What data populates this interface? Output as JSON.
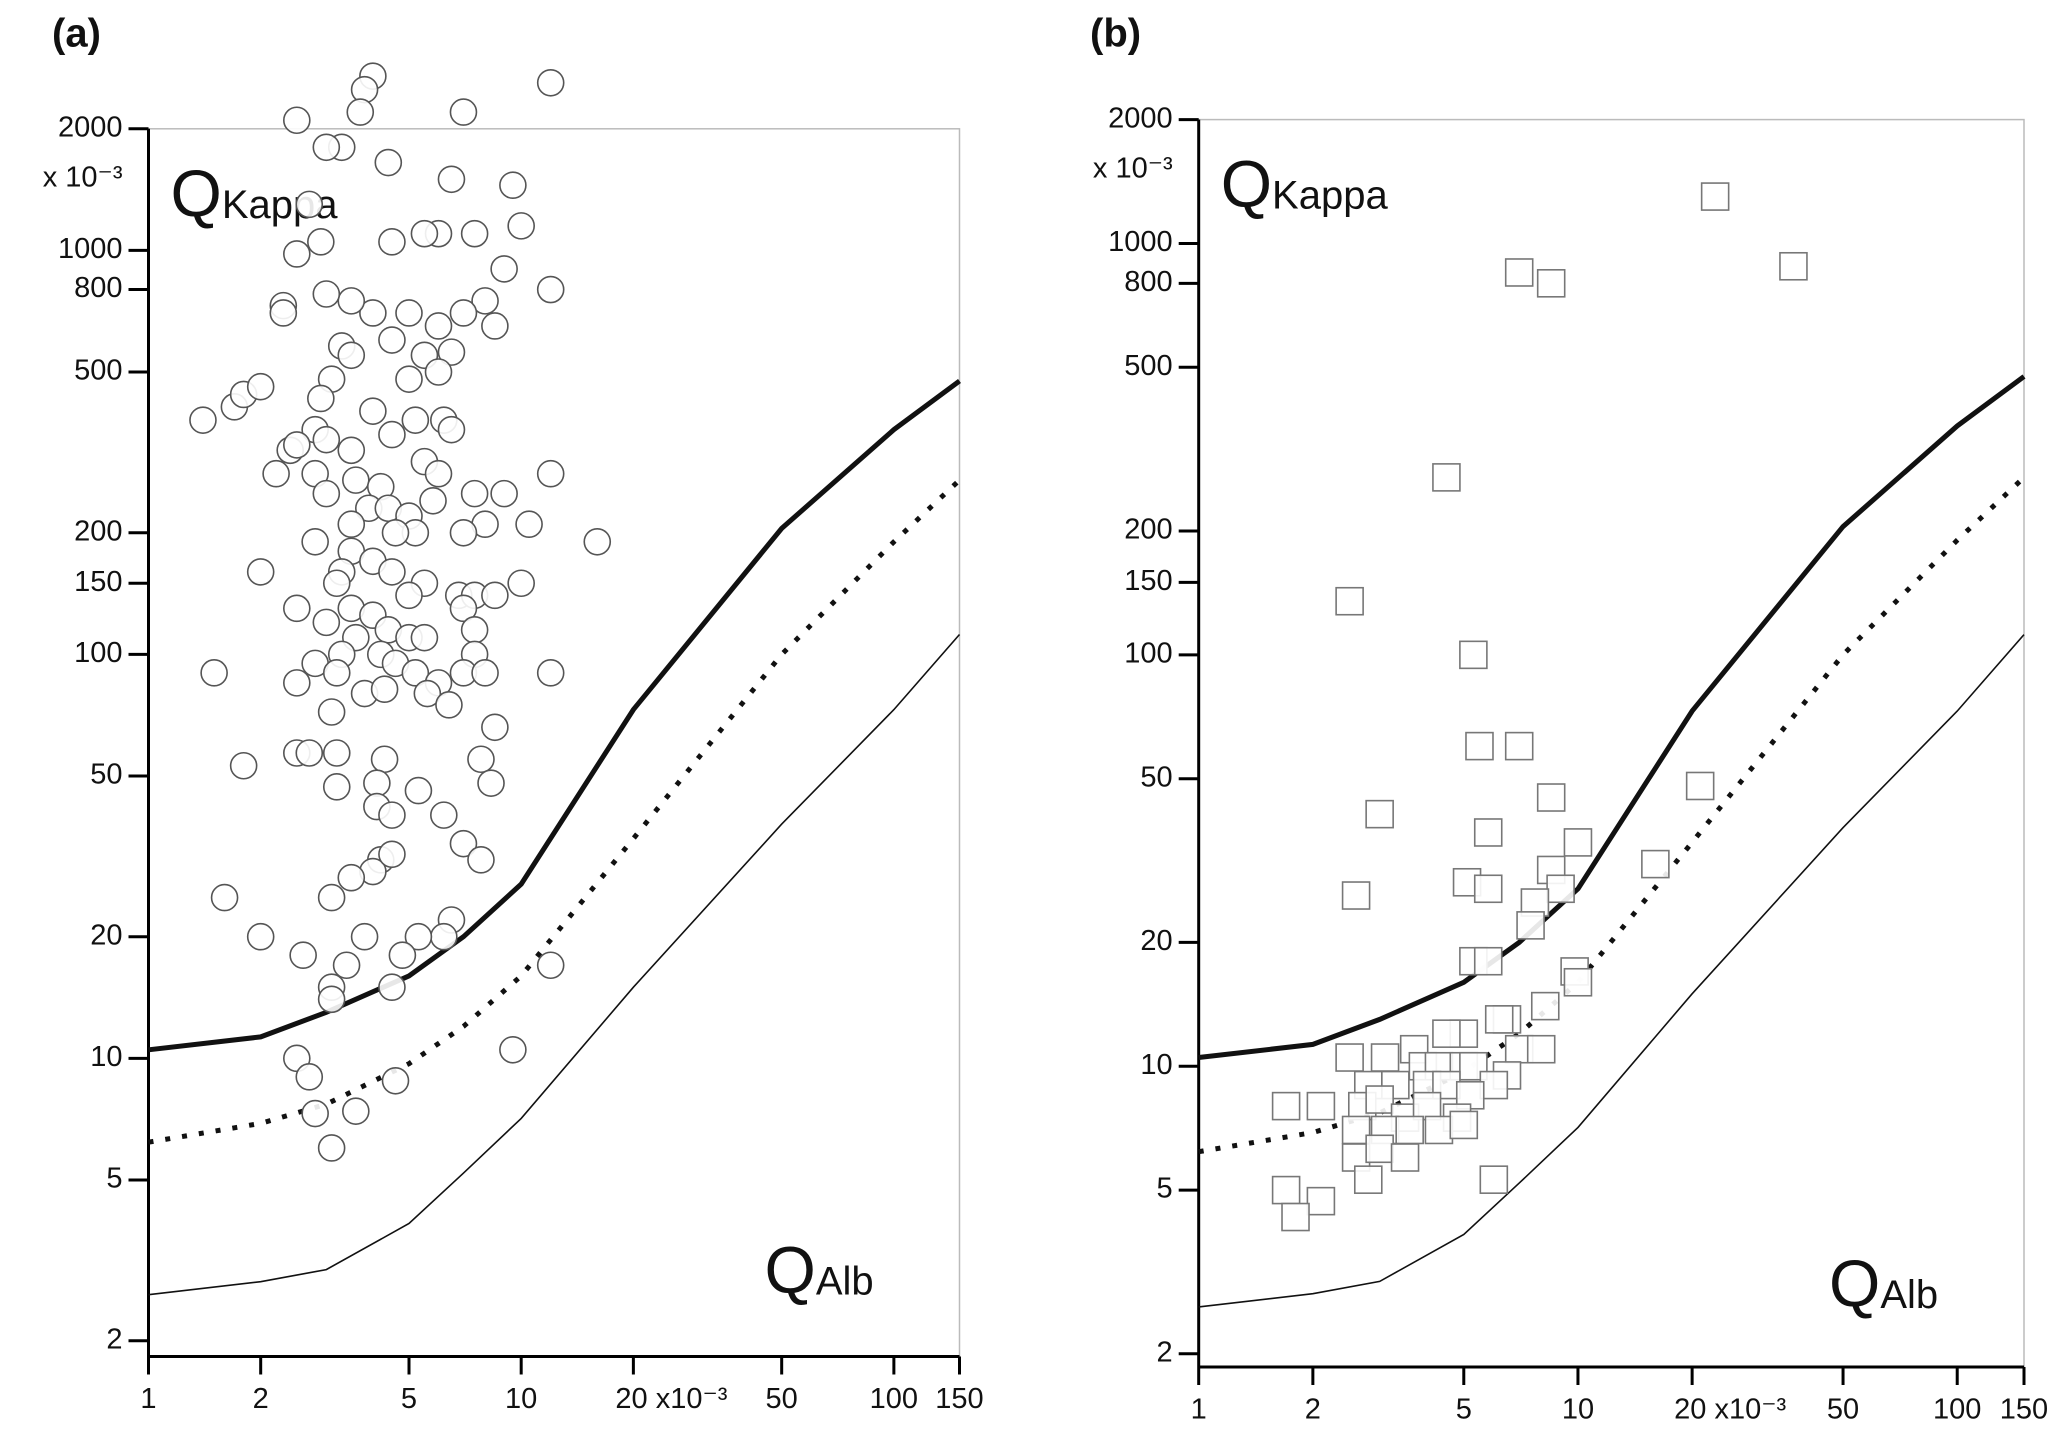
{
  "chart_data": [
    {
      "type": "scatter",
      "panel_label": "(a)",
      "annotation_top": "Q",
      "annotation_top_sub": "Kappa",
      "annotation_bottom": "Q",
      "annotation_bottom_sub": "Alb",
      "y_unit": "x 10⁻³",
      "xscale": "log",
      "yscale": "log",
      "xlim": [
        1,
        150
      ],
      "ylim": [
        2,
        2000
      ],
      "xticks": [
        1,
        2,
        5,
        10,
        {
          "value": 20,
          "label": "20 x10⁻³"
        },
        50,
        100,
        150
      ],
      "yticks": [
        2,
        5,
        10,
        20,
        50,
        100,
        150,
        200,
        500,
        800,
        1000,
        2000
      ],
      "marker": "circle",
      "color": "#555555",
      "points": {
        "x": [
          4,
          3.8,
          3.7,
          2.5,
          7,
          12,
          6.5,
          3.3,
          3,
          4.4,
          9.5,
          10,
          7.5,
          6,
          5.5,
          4.5,
          2.9,
          2.5,
          2.7,
          12,
          9,
          8,
          8.5,
          7,
          6,
          5,
          4,
          3.5,
          3,
          2.3,
          2.3,
          3.3,
          3.5,
          4.5,
          5.5,
          6.5,
          6,
          5,
          3.1,
          2.9,
          1.4,
          1.7,
          1.8,
          2,
          2.8,
          3,
          3.5,
          4,
          4.5,
          5.2,
          6.2,
          6.5,
          2.4,
          2.8,
          2.2,
          2.5,
          3.6,
          4.2,
          5.5,
          6,
          12,
          9,
          7.5,
          3,
          3.9,
          4.4,
          5,
          5.8,
          10.5,
          8,
          7,
          5.2,
          4.6,
          3.5,
          2.8,
          3.5,
          16,
          4,
          3.3,
          3.2,
          4.5,
          5.5,
          5,
          6.8,
          7.5,
          8.5,
          10,
          7,
          3.5,
          2.5,
          2,
          3,
          4,
          4.4,
          5,
          5.5,
          7.5,
          7.5,
          3.6,
          4.2,
          3.3,
          2.8,
          3.2,
          4.6,
          5.2,
          6,
          7,
          8,
          12,
          1.5,
          2.5,
          3.8,
          4.3,
          5.6,
          6.4,
          3.1,
          8.5,
          2.5,
          2.7,
          3.2,
          4.3,
          1.8,
          7.8,
          8.3,
          3.2,
          4.1,
          5.3,
          4.1,
          4.5,
          6.2,
          7,
          7.8,
          4.2,
          4,
          4.5,
          3.5,
          3.1,
          1.6,
          6.5,
          6.2,
          5.3,
          4.8,
          3.8,
          2.6,
          2,
          3.4,
          3.1,
          3.1,
          4.5,
          12,
          2.5,
          2.7,
          4.6,
          9.5,
          2.8,
          3.6,
          3.1
        ],
        "y": [
          2700,
          2500,
          2200,
          2100,
          2200,
          2600,
          1500,
          1800,
          1800,
          1650,
          1450,
          1150,
          1100,
          1100,
          1100,
          1050,
          1050,
          980,
          1300,
          800,
          900,
          750,
          650,
          700,
          650,
          700,
          700,
          750,
          780,
          730,
          700,
          580,
          550,
          600,
          550,
          560,
          500,
          480,
          480,
          430,
          380,
          410,
          440,
          460,
          360,
          340,
          320,
          400,
          350,
          380,
          380,
          360,
          320,
          280,
          280,
          330,
          270,
          260,
          300,
          280,
          280,
          250,
          250,
          250,
          230,
          230,
          220,
          240,
          210,
          210,
          200,
          200,
          200,
          210,
          190,
          180,
          190,
          170,
          160,
          150,
          160,
          150,
          140,
          140,
          140,
          140,
          150,
          130,
          130,
          130,
          160,
          120,
          125,
          115,
          110,
          110,
          115,
          100,
          110,
          100,
          100,
          95,
          90,
          95,
          90,
          85,
          90,
          90,
          90,
          90,
          85,
          80,
          82,
          80,
          75,
          72,
          66,
          57,
          57,
          57,
          55,
          53,
          55,
          48,
          47,
          48,
          46,
          42,
          40,
          40,
          34,
          31,
          31,
          29,
          32,
          28,
          25,
          25,
          22,
          20,
          20,
          18,
          20,
          18,
          20,
          17,
          15,
          14,
          15,
          17,
          10,
          9,
          8.8,
          10.5,
          7.3,
          7.4,
          6
        ]
      },
      "curve_x": [
        1,
        2,
        3,
        5,
        7,
        10,
        20,
        50,
        100,
        150
      ],
      "curves": [
        {
          "line_style": "solid-thick",
          "values": [
            10.5,
            11.3,
            13,
            16,
            20,
            27,
            73,
            205,
            360,
            475
          ]
        },
        {
          "line_style": "dotted",
          "values": [
            6.2,
            6.9,
            7.7,
            9.7,
            12,
            16,
            35,
            100,
            190,
            270
          ]
        },
        {
          "line_style": "solid-thin",
          "values": [
            2.6,
            2.8,
            3.0,
            3.9,
            5.2,
            7.1,
            15,
            38,
            73,
            112
          ]
        }
      ]
    },
    {
      "type": "scatter",
      "panel_label": "(b)",
      "annotation_top": "Q",
      "annotation_top_sub": "Kappa",
      "annotation_bottom": "Q",
      "annotation_bottom_sub": "Alb",
      "y_unit": "x 10⁻³",
      "xscale": "log",
      "yscale": "log",
      "xlim": [
        1,
        150
      ],
      "ylim": [
        2,
        2000
      ],
      "xticks": [
        1,
        2,
        5,
        10,
        {
          "value": 20,
          "label": "20 x10⁻³"
        },
        50,
        100,
        150
      ],
      "yticks": [
        2,
        5,
        10,
        20,
        50,
        100,
        150,
        200,
        500,
        800,
        1000,
        2000
      ],
      "marker": "square",
      "color": "#777777",
      "points": {
        "x": [
          23,
          7,
          8.5,
          37,
          4.5,
          2.5,
          5.3,
          5.5,
          7,
          8.5,
          3,
          21,
          5.8,
          10,
          8.5,
          16,
          2.6,
          5.1,
          5.8,
          9,
          7.7,
          7.5,
          5.3,
          5.8,
          9.8,
          10,
          8.2,
          6.5,
          6.2,
          5,
          4.5,
          3.7,
          2.5,
          3.1,
          3.9,
          4.3,
          5,
          5.3,
          7,
          8,
          6.5,
          6,
          2.8,
          3.3,
          4,
          4.5,
          5.2,
          1.7,
          2.1,
          2.7,
          3,
          3.5,
          4,
          4.8,
          2.6,
          3.1,
          3.6,
          4.3,
          5,
          2.6,
          3,
          3.5,
          2.8,
          6,
          1.7,
          2.1,
          1.8
        ],
        "y": [
          1300,
          850,
          800,
          880,
          270,
          135,
          100,
          60,
          60,
          45,
          41,
          48,
          37,
          35,
          30,
          31,
          26,
          28,
          27,
          27,
          25,
          22,
          18,
          18,
          17,
          16,
          14,
          13,
          13,
          12,
          12,
          11,
          10.5,
          10.5,
          10,
          10,
          10,
          10,
          11,
          11,
          9.5,
          9,
          9,
          9,
          9,
          9,
          8.5,
          8,
          8,
          8,
          8.3,
          7.5,
          8,
          7.5,
          7,
          7,
          7,
          7,
          7.2,
          6,
          6.3,
          6,
          5.3,
          5.3,
          5,
          4.7,
          4.3
        ]
      },
      "curve_x": [
        1,
        2,
        3,
        5,
        7,
        10,
        20,
        50,
        100,
        150
      ],
      "curves": [
        {
          "line_style": "solid-thick",
          "values": [
            10.5,
            11.3,
            13,
            16,
            20,
            27,
            73,
            205,
            360,
            475
          ]
        },
        {
          "line_style": "dotted",
          "values": [
            6.2,
            6.9,
            7.7,
            9.7,
            12,
            16,
            35,
            100,
            190,
            270
          ]
        },
        {
          "line_style": "solid-thin",
          "values": [
            2.6,
            2.8,
            3.0,
            3.9,
            5.2,
            7.1,
            15,
            38,
            73,
            112
          ]
        }
      ]
    }
  ]
}
